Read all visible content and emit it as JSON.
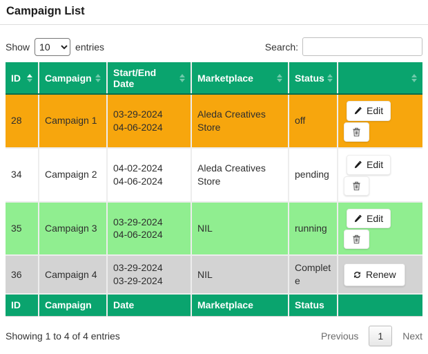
{
  "page": {
    "title": "Campaign List"
  },
  "toolbar": {
    "show_label": "Show",
    "page_length": "10",
    "entries_label": "entries",
    "search_label": "Search:",
    "search_value": ""
  },
  "table": {
    "headers": [
      {
        "key": "id",
        "label": "ID",
        "sort": "asc"
      },
      {
        "key": "campaign",
        "label": "Campaign",
        "sort": "none"
      },
      {
        "key": "date",
        "label": "Start/End Date",
        "sort": "none"
      },
      {
        "key": "marketplace",
        "label": "Marketplace",
        "sort": "none"
      },
      {
        "key": "status",
        "label": "Status",
        "sort": "none"
      },
      {
        "key": "actions",
        "label": "",
        "sort": "none"
      }
    ],
    "rows": [
      {
        "id": "28",
        "campaign": "Campaign 1",
        "start_date": "03-29-2024",
        "end_date": "04-06-2024",
        "marketplace": "Aleda Creatives Store",
        "status": "off",
        "row_color": "#F7A60D",
        "actions": [
          "edit",
          "delete"
        ]
      },
      {
        "id": "34",
        "campaign": "Campaign 2",
        "start_date": "04-02-2024",
        "end_date": "04-06-2024",
        "marketplace": "Aleda Creatives Store",
        "status": "pending",
        "row_color": "#FFFFFF",
        "actions": [
          "edit",
          "delete"
        ]
      },
      {
        "id": "35",
        "campaign": "Campaign 3",
        "start_date": "03-29-2024",
        "end_date": "04-06-2024",
        "marketplace": "NIL",
        "status": "running",
        "row_color": "#90EE90",
        "actions": [
          "edit",
          "delete"
        ]
      },
      {
        "id": "36",
        "campaign": "Campaign 4",
        "start_date": "03-29-2024",
        "end_date": "03-29-2024",
        "marketplace": "NIL",
        "status": "Complete",
        "row_color": "#D3D3D3",
        "actions": [
          "renew"
        ]
      }
    ],
    "footer_headers": [
      "ID",
      "Campaign",
      "Date",
      "Marketplace",
      "Status",
      ""
    ]
  },
  "buttons": {
    "edit_label": "Edit",
    "renew_label": "Renew"
  },
  "info": {
    "summary": "Showing 1 to 4 of 4 entries"
  },
  "pagination": {
    "previous_label": "Previous",
    "current_page": "1",
    "next_label": "Next"
  },
  "colors": {
    "header_green": "#0AA46E",
    "header_border_dark": "#0b6b4a",
    "row_off_orange": "#F7A60D",
    "row_running_lightgreen": "#90EE90",
    "row_complete_lightgray": "#D3D3D3"
  }
}
